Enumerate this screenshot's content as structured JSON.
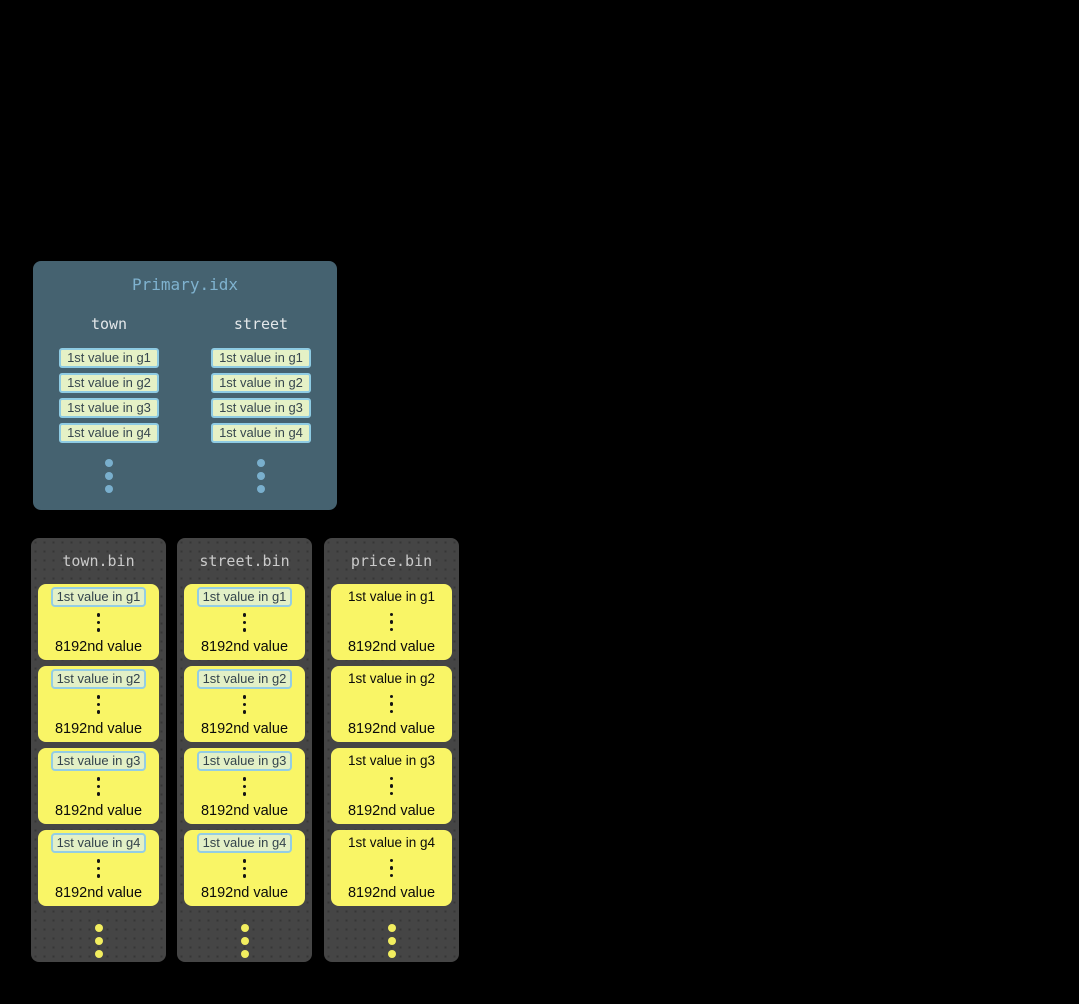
{
  "page": {
    "background": "#000000"
  },
  "colors": {
    "primary_panel_bg": "#456270",
    "primary_title_text": "#7fb2cf",
    "column_header_text": "#e3e7e9",
    "chip_bg": "#e5f1c6",
    "chip_border": "#8ecbe3",
    "chip_text": "#37474f",
    "primary_ellipsis_dots": "#79afcd",
    "bin_panel_bg": "#454545",
    "bin_title_text": "#cacaca",
    "group_box_bg": "#f9f566",
    "group_box_text": "#0a0a0a",
    "bin_ellipsis_dots": "#f2ee5f"
  },
  "primary_panel": {
    "title": "Primary.idx",
    "columns": [
      {
        "name": "town",
        "entries": [
          "1st value in g1",
          "1st value in g2",
          "1st value in g3",
          "1st value in g4"
        ]
      },
      {
        "name": "street",
        "entries": [
          "1st value in g1",
          "1st value in g2",
          "1st value in g3",
          "1st value in g4"
        ]
      }
    ]
  },
  "bin_panels": [
    {
      "title": "town.bin",
      "first_value_highlighted": true,
      "groups": [
        {
          "first": "1st value in g1",
          "last": "8192nd value"
        },
        {
          "first": "1st value in g2",
          "last": "8192nd value"
        },
        {
          "first": "1st value in g3",
          "last": "8192nd value"
        },
        {
          "first": "1st value in g4",
          "last": "8192nd value"
        }
      ]
    },
    {
      "title": "street.bin",
      "first_value_highlighted": true,
      "groups": [
        {
          "first": "1st value in g1",
          "last": "8192nd value"
        },
        {
          "first": "1st value in g2",
          "last": "8192nd value"
        },
        {
          "first": "1st value in g3",
          "last": "8192nd value"
        },
        {
          "first": "1st value in g4",
          "last": "8192nd value"
        }
      ]
    },
    {
      "title": "price.bin",
      "first_value_highlighted": false,
      "groups": [
        {
          "first": "1st value in g1",
          "last": "8192nd value"
        },
        {
          "first": "1st value in g2",
          "last": "8192nd value"
        },
        {
          "first": "1st value in g3",
          "last": "8192nd value"
        },
        {
          "first": "1st value in g4",
          "last": "8192nd value"
        }
      ]
    }
  ]
}
